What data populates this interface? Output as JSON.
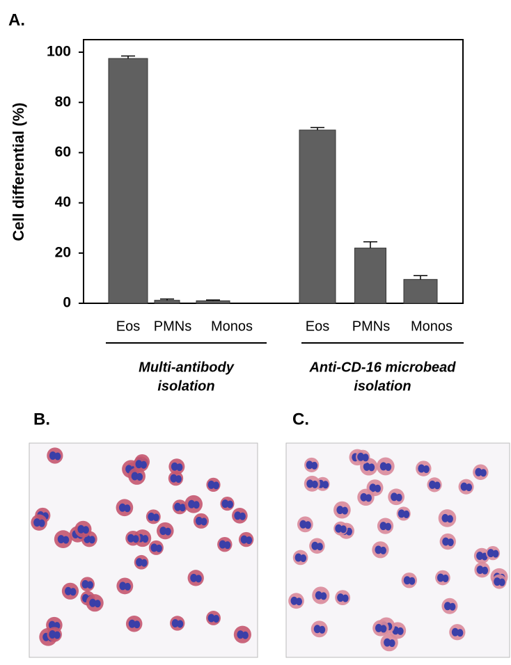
{
  "chart_data": {
    "type": "bar",
    "panel_label": "A.",
    "ylabel": "Cell differential (%)",
    "ylim": [
      0,
      105
    ],
    "yticks": [
      0,
      20,
      40,
      60,
      80,
      100
    ],
    "color": "#606060",
    "groups": [
      {
        "label_lines": [
          "Multi-antibody",
          "isolation"
        ],
        "categories": [
          "Eos",
          "PMNs",
          "Monos"
        ],
        "values": [
          97.5,
          1.2,
          1.0
        ],
        "errors": [
          1.0,
          0.5,
          0.3
        ]
      },
      {
        "label_lines": [
          "Anti-CD-16 microbead",
          "isolation"
        ],
        "categories": [
          "Eos",
          "PMNs",
          "Monos"
        ],
        "values": [
          69,
          22,
          9.5
        ],
        "errors": [
          1.0,
          2.5,
          1.5
        ]
      }
    ]
  },
  "panels": [
    {
      "label": "B."
    },
    {
      "label": "C."
    }
  ]
}
